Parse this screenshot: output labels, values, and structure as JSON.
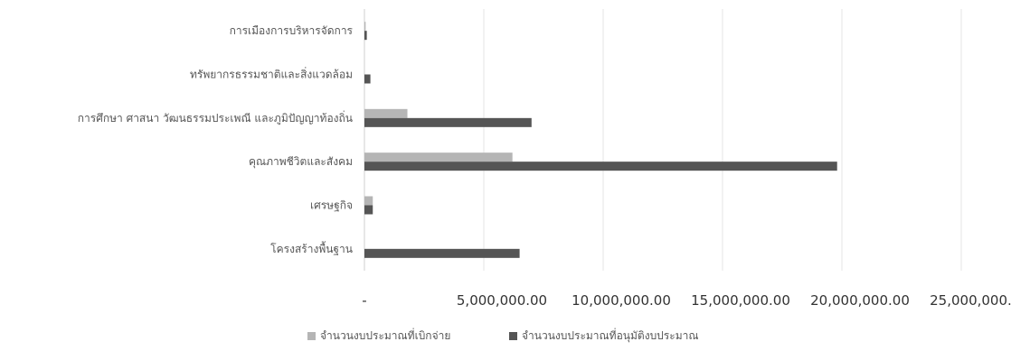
{
  "chart_data": {
    "type": "bar",
    "orientation": "horizontal",
    "categories": [
      "การเมืองการบริหารจัดการ",
      "ทรัพยากรธรรมชาติและสิ่งแวดล้อม",
      "การศึกษา ศาสนา วัฒนธรรมประเพณี และภูมิปัญญาท้องถิ่น",
      "คุณภาพชีวิตและสังคม",
      "เศรษฐกิจ",
      "โครงสร้างพื้นฐาน"
    ],
    "series": [
      {
        "name": "จำนวนงบประมาณที่เบิกจ่าย",
        "values": [
          50000,
          0,
          1800000,
          6200000,
          350000,
          0
        ],
        "color": "#b5b5b5"
      },
      {
        "name": "จำนวนงบประมาณที่อนุมัติงบประมาณ",
        "values": [
          100000,
          250000,
          7000000,
          19800000,
          350000,
          6500000
        ],
        "color": "#555555"
      }
    ],
    "x_ticks": [
      "-",
      "5,000,000.00",
      "10,000,000.00",
      "15,000,000.00",
      "20,000,000.00",
      "25,000,000.00"
    ],
    "xlim": [
      0,
      25000000
    ],
    "grid": true,
    "legend_position": "bottom"
  }
}
